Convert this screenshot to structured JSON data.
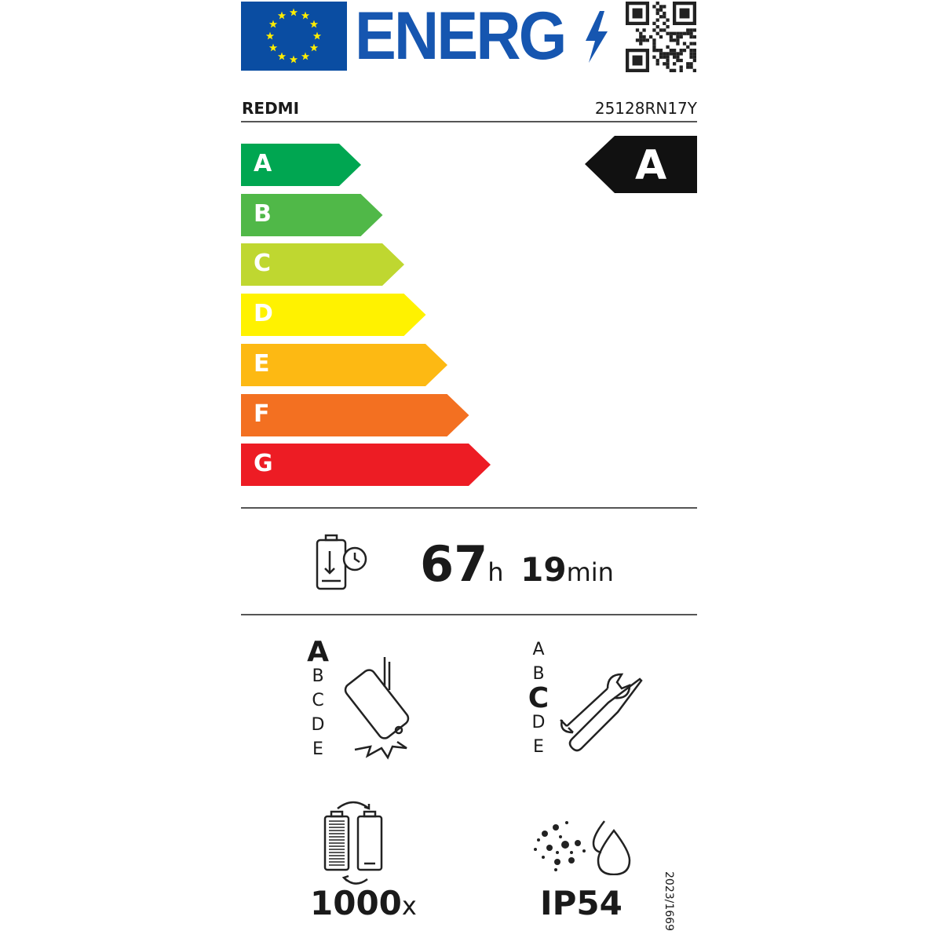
{
  "header": {
    "logo_text": "ENERG",
    "brand": "REDMI",
    "model": "25128RN17Y"
  },
  "energy_scale": {
    "classes": [
      {
        "label": "A",
        "color": "#00a651"
      },
      {
        "label": "B",
        "color": "#50b848"
      },
      {
        "label": "C",
        "color": "#bfd730"
      },
      {
        "label": "D",
        "color": "#fff200"
      },
      {
        "label": "E",
        "color": "#fdb913"
      },
      {
        "label": "F",
        "color": "#f37021"
      },
      {
        "label": "G",
        "color": "#ed1c24"
      }
    ],
    "rating": "A"
  },
  "endurance": {
    "icon": "battery-clock-icon",
    "hours": "67",
    "hours_unit": "h",
    "minutes": "19",
    "minutes_unit": "min"
  },
  "drop_resistance": {
    "icon": "phone-drop-icon",
    "scale": [
      "A",
      "B",
      "C",
      "D",
      "E"
    ],
    "selected": "A"
  },
  "repairability": {
    "icon": "wrench-screwdriver-icon",
    "scale": [
      "A",
      "B",
      "C",
      "D",
      "E"
    ],
    "selected": "C"
  },
  "battery_cycles": {
    "icon": "battery-cycle-icon",
    "value": "1000",
    "unit": "x"
  },
  "ingress_protection": {
    "icon": "dust-water-icon",
    "value": "IP54"
  },
  "regulation": "2023/1669",
  "colors": {
    "eu_blue": "#0a4da2",
    "eu_star": "#ffed00",
    "logo_blue": "#1656b0"
  }
}
